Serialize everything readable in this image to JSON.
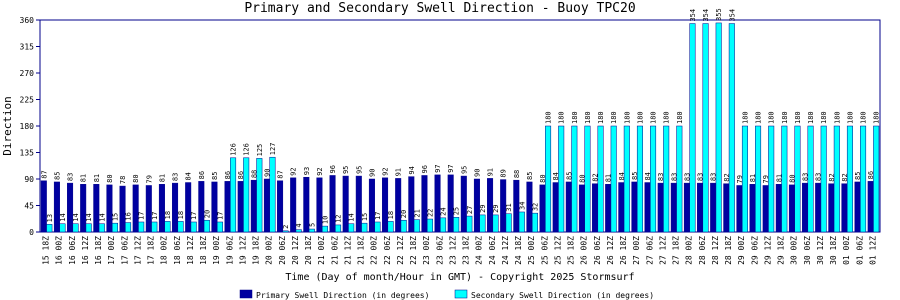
{
  "chart_data": {
    "type": "bar",
    "title": "Primary and Secondary Swell Direction - Buoy TPC20",
    "y_label": "Direction",
    "x_label": "Time (Day of month/Hour in GMT) - Copyright 2025 Stormsurf",
    "categories": [
      "15 18Z",
      "16 00Z",
      "16 06Z",
      "16 12Z",
      "16 18Z",
      "17 00Z",
      "17 06Z",
      "17 12Z",
      "17 18Z",
      "18 00Z",
      "18 06Z",
      "18 12Z",
      "18 18Z",
      "19 00Z",
      "19 06Z",
      "19 12Z",
      "19 18Z",
      "20 00Z",
      "20 06Z",
      "20 12Z",
      "20 18Z",
      "21 00Z",
      "21 06Z",
      "21 12Z",
      "21 18Z",
      "22 00Z",
      "22 06Z",
      "22 12Z",
      "22 18Z",
      "23 00Z",
      "23 06Z",
      "23 12Z",
      "23 18Z",
      "24 00Z",
      "24 06Z",
      "24 12Z",
      "24 18Z",
      "25 00Z",
      "25 06Z",
      "25 12Z",
      "25 18Z",
      "26 00Z",
      "26 06Z",
      "26 12Z",
      "26 18Z",
      "27 00Z",
      "27 06Z",
      "27 12Z",
      "27 18Z",
      "28 00Z",
      "28 06Z",
      "28 12Z",
      "28 18Z",
      "29 00Z",
      "29 06Z",
      "29 12Z",
      "29 18Z",
      "30 00Z",
      "30 06Z",
      "30 12Z",
      "30 18Z",
      "01 00Z",
      "01 06Z",
      "01 12Z"
    ],
    "series": [
      {
        "name": "Primary Swell Direction (in degrees)",
        "color": "#0000a0",
        "values": [
          87,
          85,
          83,
          81,
          81,
          80,
          78,
          80,
          79,
          81,
          83,
          84,
          86,
          85,
          86,
          86,
          88,
          90,
          87,
          92,
          93,
          92,
          96,
          95,
          95,
          90,
          92,
          91,
          94,
          96,
          97,
          97,
          95,
          90,
          91,
          89,
          88,
          85,
          80,
          84,
          85,
          80,
          82,
          81,
          84,
          85,
          84,
          83,
          83,
          83,
          83,
          83,
          82,
          79,
          81,
          79,
          81,
          80,
          83,
          83,
          82,
          82,
          85,
          86
        ]
      },
      {
        "name": "Secondary Swell Direction (in degrees)",
        "color": "#00ffff",
        "values": [
          13,
          14,
          14,
          14,
          14,
          15,
          16,
          17,
          17,
          18,
          18,
          17,
          20,
          17,
          126,
          126,
          125,
          127,
          2,
          4,
          5,
          10,
          12,
          14,
          15,
          17,
          18,
          20,
          21,
          22,
          24,
          25,
          27,
          29,
          29,
          31,
          34,
          32,
          180,
          180,
          180,
          180,
          180,
          180,
          180,
          180,
          180,
          180,
          180,
          354,
          354,
          355,
          354,
          180,
          180,
          180,
          180,
          180,
          180,
          180,
          180,
          180,
          180,
          180
        ]
      }
    ],
    "ylim": [
      0,
      360
    ],
    "yticks": [
      0,
      45,
      90,
      135,
      180,
      225,
      270,
      315,
      360
    ]
  }
}
